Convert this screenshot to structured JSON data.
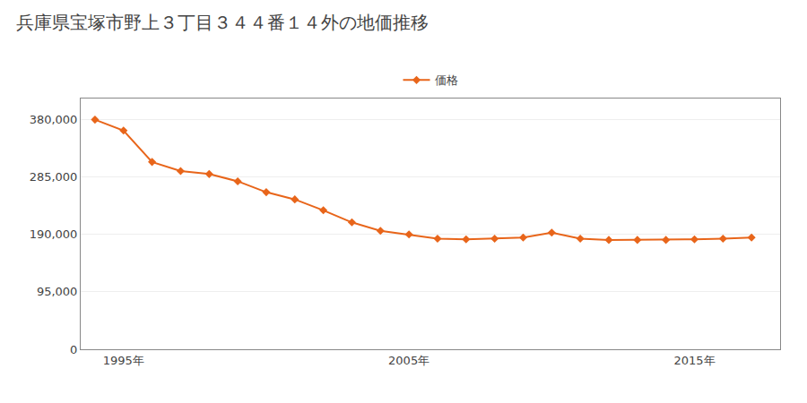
{
  "chart_data": {
    "type": "line",
    "title": "兵庫県宝塚市野上３丁目３４４番１４外の地価推移",
    "x": [
      1994,
      1995,
      1996,
      1997,
      1998,
      1999,
      2000,
      2001,
      2002,
      2003,
      2004,
      2005,
      2006,
      2007,
      2008,
      2009,
      2010,
      2011,
      2012,
      2013,
      2014,
      2015,
      2016,
      2017
    ],
    "series": [
      {
        "name": "価格",
        "color": "#E8651A",
        "marker": "diamond",
        "values": [
          380000,
          362000,
          310000,
          295000,
          290000,
          278000,
          260000,
          248000,
          230000,
          210000,
          196000,
          190000,
          183000,
          182000,
          183000,
          185000,
          193000,
          183000,
          181000,
          181000,
          181000,
          182000,
          183000,
          185000
        ]
      }
    ],
    "xlim": [
      1993.5,
      2018.0
    ],
    "xticks": [
      {
        "value": 1995,
        "label": "1995年"
      },
      {
        "value": 2005,
        "label": "2005年"
      },
      {
        "value": 2015,
        "label": "2015年"
      }
    ],
    "ylim": [
      0,
      415000
    ],
    "yticks": [
      0,
      {
        "value": 95000,
        "label": "95,000"
      },
      {
        "value": 190000,
        "label": "190,000"
      },
      {
        "value": 285000,
        "label": "285,000"
      },
      {
        "value": 380000,
        "label": "380,000"
      }
    ],
    "grid": true,
    "legend": "top"
  }
}
